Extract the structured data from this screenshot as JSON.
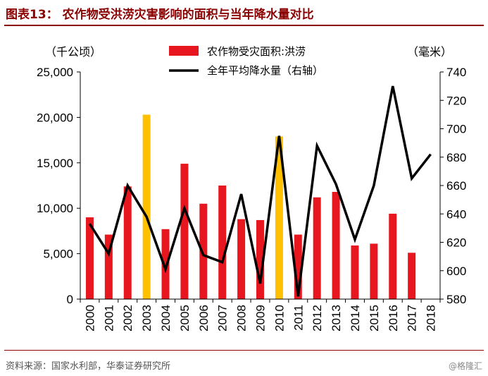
{
  "header": {
    "title": "图表13： 农作物受洪涝灾害影响的面积与当年降水量对比"
  },
  "footer": {
    "source": "资料来源：国家水利部，华泰证券研究所",
    "watermark": "@格隆汇"
  },
  "chart_data": {
    "type": "bar",
    "categories": [
      "2000",
      "2001",
      "2002",
      "2003",
      "2004",
      "2005",
      "2006",
      "2007",
      "2008",
      "2009",
      "2010",
      "2011",
      "2012",
      "2013",
      "2014",
      "2015",
      "2016",
      "2017",
      "2018"
    ],
    "left_unit": "（千公顷）",
    "right_unit": "（毫米）",
    "ylim": [
      0,
      25000
    ],
    "yticks": [
      "0",
      "5,000",
      "10,000",
      "15,000",
      "20,000",
      "25,000"
    ],
    "y2lim": [
      580,
      740
    ],
    "y2ticks": [
      "580",
      "600",
      "620",
      "640",
      "660",
      "680",
      "700",
      "720",
      "740"
    ],
    "legend_position": "top",
    "highlight_color": "#ffc000",
    "series": [
      {
        "name": "农作物受灾面积:洪涝",
        "kind": "bar",
        "axis": "left",
        "color": "#e8161e",
        "values": [
          9000,
          7100,
          12400,
          20300,
          7700,
          14900,
          10500,
          12500,
          8800,
          8700,
          17900,
          7100,
          11200,
          11800,
          5900,
          6100,
          9400,
          5100,
          null
        ],
        "highlight": [
          false,
          false,
          false,
          true,
          false,
          false,
          false,
          false,
          false,
          false,
          true,
          false,
          false,
          false,
          false,
          false,
          false,
          false,
          false
        ]
      },
      {
        "name": "全年平均降水量（右轴）",
        "kind": "line",
        "axis": "right",
        "color": "#000000",
        "values": [
          633,
          612,
          660,
          638,
          601,
          644,
          611,
          606,
          654,
          591,
          695,
          582,
          688,
          661,
          622,
          660,
          730,
          665,
          682
        ]
      }
    ]
  }
}
